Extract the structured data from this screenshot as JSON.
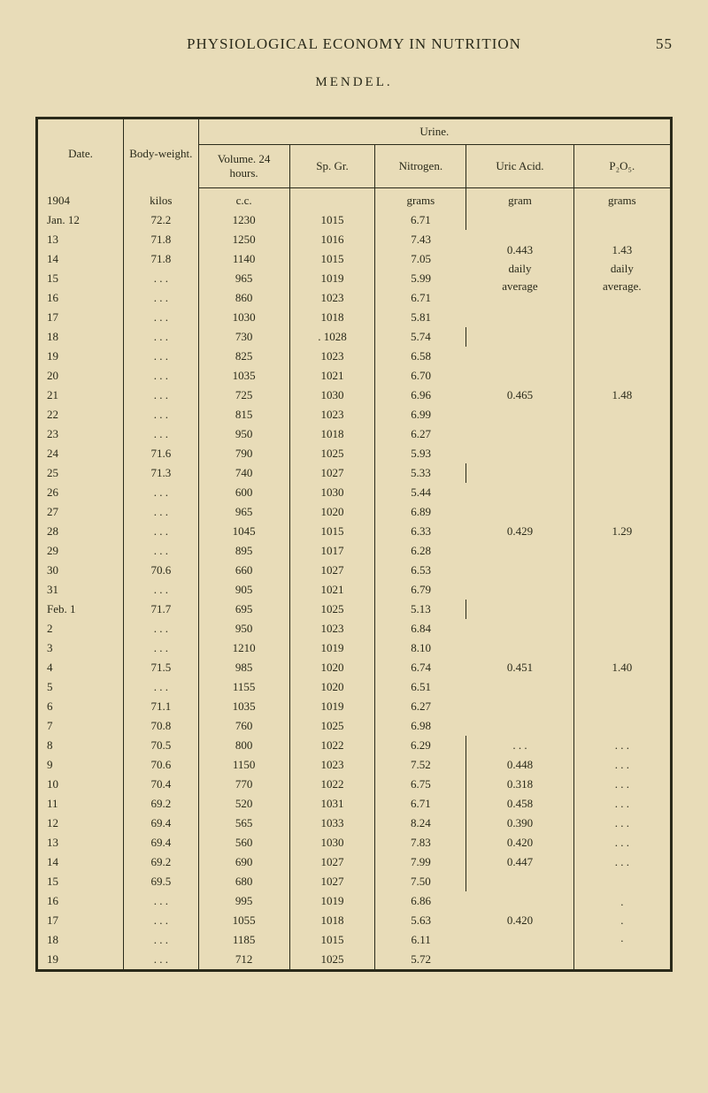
{
  "page": {
    "number": "55",
    "running_title": "PHYSIOLOGICAL ECONOMY IN NUTRITION",
    "table_caption": "MENDEL."
  },
  "headers": {
    "date": "Date.",
    "body_weight": "Body-weight.",
    "urine": "Urine.",
    "volume": "Volume. 24 hours.",
    "sp_gr": "Sp. Gr.",
    "nitrogen": "Nitrogen.",
    "uric_acid": "Uric Acid.",
    "p2o5": "P₂O₅."
  },
  "units": {
    "year": "1904",
    "body": "kilos",
    "volume": "c.c.",
    "nitrogen": "grams",
    "uric": "gram",
    "p2o5": "grams"
  },
  "groups": [
    {
      "uric": "0.443 daily average",
      "p": "1.43 daily average.",
      "span": 6
    },
    {
      "uric": "0.465",
      "p": "1.48",
      "span": 7
    },
    {
      "uric": "0.429",
      "p": "1.29",
      "span": 7
    },
    {
      "uric": "0.451",
      "p": "1.40",
      "span": 7
    }
  ],
  "rows": [
    {
      "date": "Jan. 12",
      "body": "72.2",
      "vol": "1230",
      "sp": "1015",
      "nit": "6.71",
      "g": 0,
      "first": true
    },
    {
      "date": "13",
      "body": "71.8",
      "vol": "1250",
      "sp": "1016",
      "nit": "7.43",
      "g": 0
    },
    {
      "date": "14",
      "body": "71.8",
      "vol": "1140",
      "sp": "1015",
      "nit": "7.05",
      "g": 0
    },
    {
      "date": "15",
      "body": ". . .",
      "vol": "965",
      "sp": "1019",
      "nit": "5.99",
      "g": 0
    },
    {
      "date": "16",
      "body": ". . .",
      "vol": "860",
      "sp": "1023",
      "nit": "6.71",
      "g": 0
    },
    {
      "date": "17",
      "body": ". . .",
      "vol": "1030",
      "sp": "1018",
      "nit": "5.81",
      "g": 0
    },
    {
      "date": "18",
      "body": ". . .",
      "vol": "730",
      "sp": ". 1028",
      "nit": "5.74",
      "g": 1,
      "first": true
    },
    {
      "date": "19",
      "body": ". . .",
      "vol": "825",
      "sp": "1023",
      "nit": "6.58",
      "g": 1
    },
    {
      "date": "20",
      "body": ". . .",
      "vol": "1035",
      "sp": "1021",
      "nit": "6.70",
      "g": 1
    },
    {
      "date": "21",
      "body": ". . .",
      "vol": "725",
      "sp": "1030",
      "nit": "6.96",
      "g": 1
    },
    {
      "date": "22",
      "body": ". . .",
      "vol": "815",
      "sp": "1023",
      "nit": "6.99",
      "g": 1
    },
    {
      "date": "23",
      "body": ". . .",
      "vol": "950",
      "sp": "1018",
      "nit": "6.27",
      "g": 1
    },
    {
      "date": "24",
      "body": "71.6",
      "vol": "790",
      "sp": "1025",
      "nit": "5.93",
      "g": 1
    },
    {
      "date": "25",
      "body": "71.3",
      "vol": "740",
      "sp": "1027",
      "nit": "5.33",
      "g": 2,
      "first": true
    },
    {
      "date": "26",
      "body": ". . .",
      "vol": "600",
      "sp": "1030",
      "nit": "5.44",
      "g": 2
    },
    {
      "date": "27",
      "body": ". . .",
      "vol": "965",
      "sp": "1020",
      "nit": "6.89",
      "g": 2
    },
    {
      "date": "28",
      "body": ". . .",
      "vol": "1045",
      "sp": "1015",
      "nit": "6.33",
      "g": 2
    },
    {
      "date": "29",
      "body": ". . .",
      "vol": "895",
      "sp": "1017",
      "nit": "6.28",
      "g": 2
    },
    {
      "date": "30",
      "body": "70.6",
      "vol": "660",
      "sp": "1027",
      "nit": "6.53",
      "g": 2
    },
    {
      "date": "31",
      "body": ". . .",
      "vol": "905",
      "sp": "1021",
      "nit": "6.79",
      "g": 2
    },
    {
      "date": "Feb.  1",
      "body": "71.7",
      "vol": "695",
      "sp": "1025",
      "nit": "5.13",
      "g": 3,
      "first": true
    },
    {
      "date": "2",
      "body": ". . .",
      "vol": "950",
      "sp": "1023",
      "nit": "6.84",
      "g": 3
    },
    {
      "date": "3",
      "body": ". . .",
      "vol": "1210",
      "sp": "1019",
      "nit": "8.10",
      "g": 3
    },
    {
      "date": "4",
      "body": "71.5",
      "vol": "985",
      "sp": "1020",
      "nit": "6.74",
      "g": 3
    },
    {
      "date": "5",
      "body": ". . .",
      "vol": "1155",
      "sp": "1020",
      "nit": "6.51",
      "g": 3
    },
    {
      "date": "6",
      "body": "71.1",
      "vol": "1035",
      "sp": "1019",
      "nit": "6.27",
      "g": 3
    },
    {
      "date": "7",
      "body": "70.8",
      "vol": "760",
      "sp": "1025",
      "nit": "6.98",
      "g": 3
    },
    {
      "date": "8",
      "body": "70.5",
      "vol": "800",
      "sp": "1022",
      "nit": "6.29",
      "uric": ". . .",
      "p": ". . ."
    },
    {
      "date": "9",
      "body": "70.6",
      "vol": "1150",
      "sp": "1023",
      "nit": "7.52",
      "uric": "0.448",
      "p": ". . ."
    },
    {
      "date": "10",
      "body": "70.4",
      "vol": "770",
      "sp": "1022",
      "nit": "6.75",
      "uric": "0.318",
      "p": ". . ."
    },
    {
      "date": "11",
      "body": "69.2",
      "vol": "520",
      "sp": "1031",
      "nit": "6.71",
      "uric": "0.458",
      "p": ". . ."
    },
    {
      "date": "12",
      "body": "69.4",
      "vol": "565",
      "sp": "1033",
      "nit": "8.24",
      "uric": "0.390",
      "p": ". . ."
    },
    {
      "date": "13",
      "body": "69.4",
      "vol": "560",
      "sp": "1030",
      "nit": "7.83",
      "uric": "0.420",
      "p": ". . ."
    },
    {
      "date": "14",
      "body": "69.2",
      "vol": "690",
      "sp": "1027",
      "nit": "7.99",
      "uric": "0.447",
      "p": ". . ."
    },
    {
      "date": "15",
      "body": "69.5",
      "vol": "680",
      "sp": "1027",
      "nit": "7.50",
      "g": 4,
      "first": true
    },
    {
      "date": "16",
      "body": ". . .",
      "vol": "995",
      "sp": "1019",
      "nit": "6.86",
      "g": 4
    },
    {
      "date": "17",
      "body": ". . .",
      "vol": "1055",
      "sp": "1018",
      "nit": "5.63",
      "g": 4
    },
    {
      "date": "18",
      "body": ". . .",
      "vol": "1185",
      "sp": "1015",
      "nit": "6.11",
      "g": 4
    },
    {
      "date": "19",
      "body": ". . .",
      "vol": "712",
      "sp": "1025",
      "nit": "5.72",
      "g": 4
    }
  ],
  "group4": {
    "uric": "0.420",
    "p": ". . .",
    "span": 5
  }
}
